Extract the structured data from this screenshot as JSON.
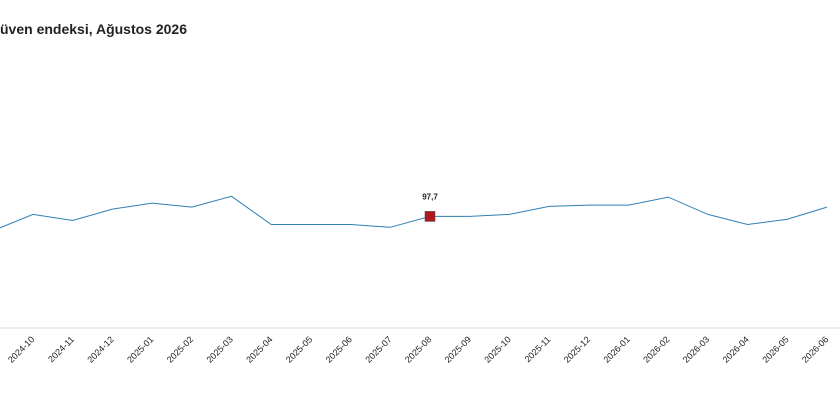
{
  "chart_data": {
    "type": "line",
    "title": "üven endeksi, Ağustos 2026",
    "categories": [
      null,
      "2024-10",
      "2024-11",
      "2024-12",
      "2025-01",
      "2025-02",
      "2025-03",
      "2025-04",
      "2025-05",
      "2025-06",
      "2025-07",
      "2025-08",
      "2025-09",
      "2025-10",
      "2025-11",
      "2025-12",
      "2026-01",
      "2026-02",
      "2026-03",
      "2026-04",
      "2026-05",
      "2026-06"
    ],
    "values": [
      94.2,
      98.2,
      96.7,
      99.5,
      101.0,
      100.0,
      102.7,
      95.7,
      95.7,
      95.7,
      95.0,
      97.7,
      97.7,
      98.2,
      100.2,
      100.5,
      100.5,
      102.5,
      98.2,
      95.7,
      97.0,
      100.0
    ],
    "value_labels": [
      null,
      null,
      null,
      null,
      null,
      null,
      null,
      null,
      null,
      null,
      null,
      "97,7",
      null,
      null,
      null,
      null,
      null,
      null,
      null,
      null,
      null,
      null
    ],
    "color": "#2f7fb5",
    "marker_color": "#b0181e",
    "ylim": [
      70,
      141.5
    ]
  }
}
